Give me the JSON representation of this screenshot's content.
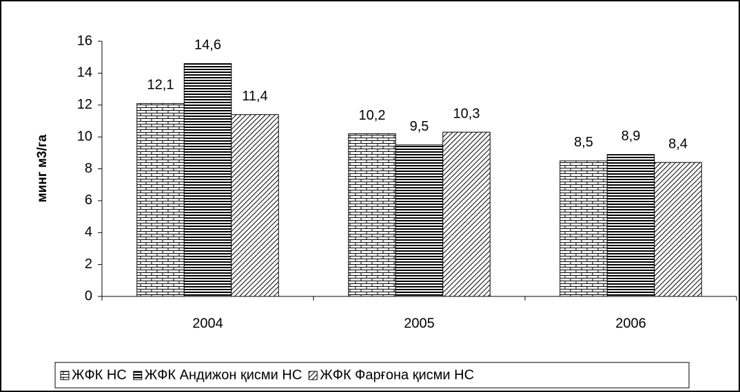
{
  "chart_data": {
    "type": "bar",
    "y_label": "минг м3/га",
    "categories": [
      "2004",
      "2005",
      "2006"
    ],
    "series": [
      {
        "name": "ЖФК НС",
        "color": "#000000",
        "values": [
          12.1,
          10.2,
          8.5
        ],
        "value_labels": [
          "12,1",
          "10,2",
          "8,5"
        ]
      },
      {
        "name": "ЖФК Андижон қисми НС",
        "color": "#000000",
        "values": [
          14.6,
          9.5,
          8.9
        ],
        "value_labels": [
          "14,6",
          "9,5",
          "8,9"
        ]
      },
      {
        "name": "ЖФК Фарғона қисми НС",
        "color": "#000000",
        "values": [
          11.4,
          10.3,
          8.4
        ],
        "value_labels": [
          "11,4",
          "10,3",
          "8,4"
        ]
      }
    ],
    "ylim": [
      0,
      16
    ],
    "yticks": [
      0,
      2,
      4,
      6,
      8,
      10,
      12,
      14,
      16
    ],
    "grid": false,
    "legend": "bottom"
  }
}
